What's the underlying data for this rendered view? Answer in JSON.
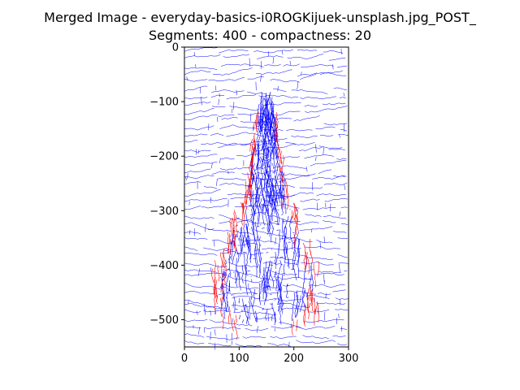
{
  "chart_data": {
    "type": "line",
    "title": "Merged Image - everyday-basics-i0ROGKijuek-unsplash.jpg_POST_",
    "subtitle": "Segments: 400 - compactness: 20",
    "xlabel": "",
    "ylabel": "",
    "xlim": [
      0,
      300
    ],
    "ylim": [
      -550,
      0
    ],
    "x_ticks": [
      0,
      100,
      200,
      300
    ],
    "y_ticks": [
      0,
      -100,
      -200,
      -300,
      -400,
      -500
    ],
    "x_tick_labels": [
      "0",
      "100",
      "200",
      "300"
    ],
    "y_tick_labels": [
      "0",
      "−100",
      "−200",
      "−300",
      "−400",
      "−500"
    ],
    "grid": false,
    "colors": {
      "background_lines": "#0000ff",
      "highlight_lines": "#ff0000",
      "axes": "#000000"
    },
    "series": [
      {
        "color": "#0000ff",
        "values_description": "dense field of short wavy blue segment-boundary strokes covering the whole image area"
      },
      {
        "color": "#ff0000",
        "values_description": "red strokes tracing the outline of the central object"
      }
    ]
  }
}
